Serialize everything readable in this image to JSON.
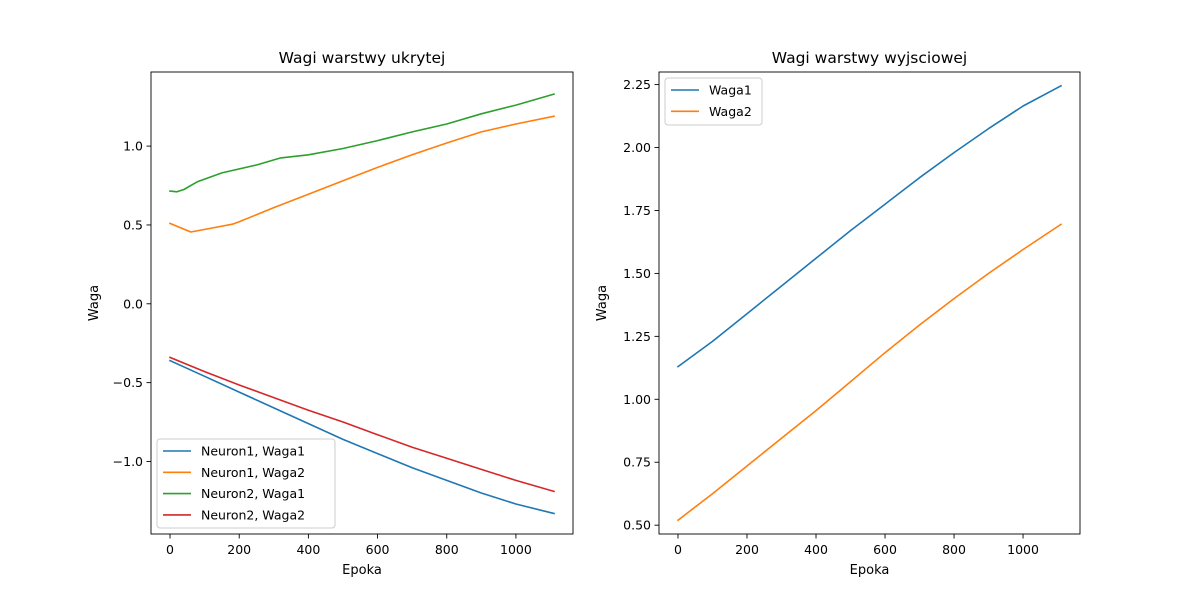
{
  "chart_data": [
    {
      "type": "line",
      "title": "Wagi warstwy ukrytej",
      "xlabel": "Epoka",
      "ylabel": "Waga",
      "xlim": [
        -55,
        1165
      ],
      "ylim": [
        -1.46,
        1.47
      ],
      "xticks": [
        0,
        200,
        400,
        600,
        800,
        1000
      ],
      "xtick_labels": [
        "0",
        "200",
        "400",
        "600",
        "800",
        "1000"
      ],
      "yticks": [
        -1.0,
        -0.5,
        0.0,
        0.5,
        1.0
      ],
      "ytick_labels": [
        "−1.0",
        "−0.5",
        "0.0",
        "0.5",
        "1.0"
      ],
      "legend_position": "lower-left",
      "series": [
        {
          "name": "Neuron1, Waga1",
          "color": "#1f77b4",
          "x": [
            0,
            100,
            200,
            300,
            400,
            500,
            600,
            700,
            800,
            900,
            1000,
            1110
          ],
          "y": [
            -0.36,
            -0.46,
            -0.56,
            -0.66,
            -0.76,
            -0.86,
            -0.95,
            -1.04,
            -1.12,
            -1.2,
            -1.27,
            -1.33
          ]
        },
        {
          "name": "Neuron1, Waga2",
          "color": "#ff7f0e",
          "x": [
            0,
            60,
            120,
            180,
            200,
            300,
            400,
            500,
            600,
            700,
            800,
            900,
            1000,
            1110
          ],
          "y": [
            0.51,
            0.455,
            0.48,
            0.505,
            0.52,
            0.61,
            0.695,
            0.78,
            0.865,
            0.945,
            1.02,
            1.09,
            1.14,
            1.19
          ]
        },
        {
          "name": "Neuron2, Waga1",
          "color": "#2ca02c",
          "x": [
            0,
            20,
            40,
            80,
            150,
            250,
            320,
            400,
            500,
            600,
            700,
            800,
            900,
            1000,
            1110
          ],
          "y": [
            0.715,
            0.71,
            0.725,
            0.775,
            0.83,
            0.88,
            0.925,
            0.945,
            0.985,
            1.035,
            1.09,
            1.14,
            1.205,
            1.26,
            1.33
          ]
        },
        {
          "name": "Neuron2, Waga2",
          "color": "#d62728",
          "x": [
            0,
            100,
            200,
            300,
            400,
            500,
            600,
            700,
            800,
            900,
            1000,
            1110
          ],
          "y": [
            -0.34,
            -0.43,
            -0.515,
            -0.595,
            -0.675,
            -0.75,
            -0.83,
            -0.91,
            -0.98,
            -1.05,
            -1.12,
            -1.19
          ]
        }
      ]
    },
    {
      "type": "line",
      "title": "Wagi warstwy wyjsciowej",
      "xlabel": "Epoka",
      "ylabel": "Waga",
      "xlim": [
        -55,
        1165
      ],
      "ylim": [
        0.465,
        2.3
      ],
      "xticks": [
        0,
        200,
        400,
        600,
        800,
        1000
      ],
      "xtick_labels": [
        "0",
        "200",
        "400",
        "600",
        "800",
        "1000"
      ],
      "yticks": [
        0.5,
        0.75,
        1.0,
        1.25,
        1.5,
        1.75,
        2.0,
        2.25
      ],
      "ytick_labels": [
        "0.50",
        "0.75",
        "1.00",
        "1.25",
        "1.50",
        "1.75",
        "2.00",
        "2.25"
      ],
      "legend_position": "upper-left",
      "series": [
        {
          "name": "Waga1",
          "color": "#1f77b4",
          "x": [
            0,
            100,
            200,
            300,
            400,
            500,
            600,
            700,
            800,
            900,
            1000,
            1110
          ],
          "y": [
            1.13,
            1.23,
            1.34,
            1.45,
            1.56,
            1.67,
            1.775,
            1.88,
            1.98,
            2.075,
            2.165,
            2.245
          ]
        },
        {
          "name": "Waga2",
          "color": "#ff7f0e",
          "x": [
            0,
            100,
            200,
            300,
            400,
            500,
            600,
            700,
            800,
            900,
            1000,
            1110
          ],
          "y": [
            0.52,
            0.625,
            0.735,
            0.845,
            0.955,
            1.07,
            1.185,
            1.295,
            1.4,
            1.5,
            1.595,
            1.695
          ]
        }
      ]
    }
  ]
}
